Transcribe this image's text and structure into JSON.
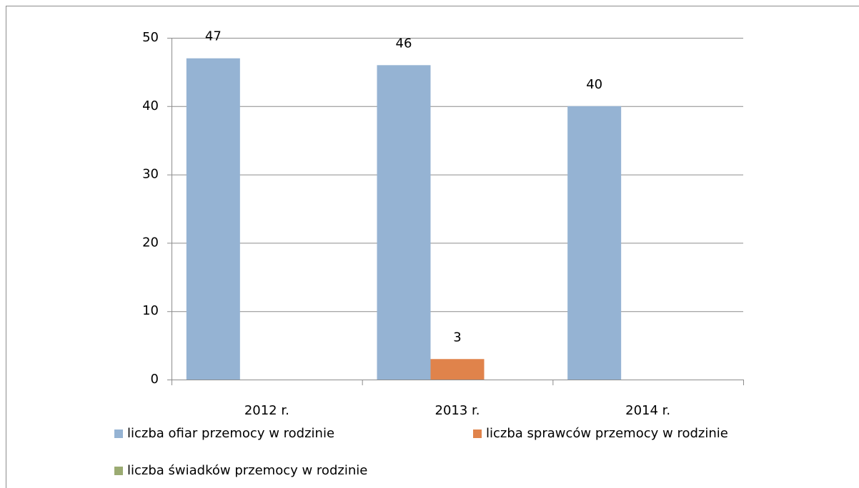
{
  "chart_data": {
    "type": "bar",
    "categories": [
      "2012 r.",
      "2013 r.",
      "2014 r."
    ],
    "series": [
      {
        "name": "liczba ofiar przemocy w rodzinie",
        "color": "#95b3d3",
        "values": [
          47,
          46,
          40
        ]
      },
      {
        "name": "liczba sprawców przemocy w rodzinie",
        "color": "#e0834b",
        "values": [
          null,
          3,
          null
        ]
      },
      {
        "name": "liczba świadków przemocy w rodzinie",
        "color": "#9bab72",
        "values": [
          null,
          null,
          null
        ]
      }
    ],
    "ylim": [
      0,
      50
    ],
    "yticks": [
      0,
      10,
      20,
      30,
      40,
      50
    ],
    "grid": true,
    "legend": "bottom"
  }
}
